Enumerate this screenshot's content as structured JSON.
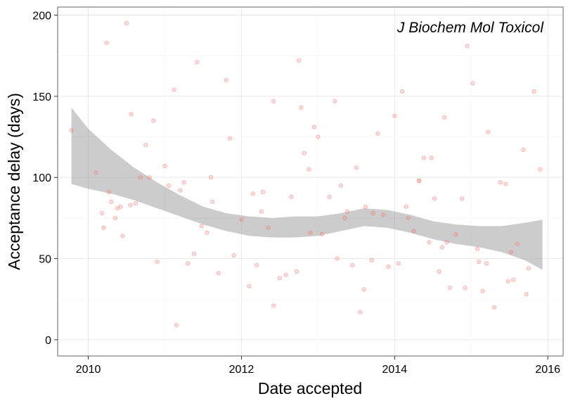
{
  "chart_data": {
    "type": "scatter",
    "title": "",
    "annotation": "J Biochem Mol Toxicol",
    "xlabel": "Date accepted",
    "ylabel": "Acceptance delay (days)",
    "xlim": [
      2009.6,
      2016.2
    ],
    "ylim": [
      -10,
      205
    ],
    "x_ticks": [
      2010,
      2012,
      2014,
      2016
    ],
    "y_ticks": [
      0,
      50,
      100,
      150,
      200
    ],
    "grid": true,
    "point_color": "#f8766d",
    "point_alpha": 0.35,
    "smooth": {
      "method": "loess",
      "fill_color": "#999999",
      "x": [
        2009.78,
        2010.0,
        2010.3,
        2010.6,
        2010.9,
        2011.2,
        2011.5,
        2011.8,
        2012.1,
        2012.4,
        2012.7,
        2013.0,
        2013.3,
        2013.6,
        2013.9,
        2014.2,
        2014.5,
        2014.8,
        2015.1,
        2015.4,
        2015.7,
        2015.93
      ],
      "upper": [
        143,
        130,
        117,
        106,
        97,
        89,
        82,
        78,
        76,
        75,
        76,
        76,
        78,
        81,
        80,
        77,
        73,
        71,
        70,
        70,
        72,
        74
      ],
      "lower": [
        96,
        93,
        90,
        86,
        81,
        76,
        71,
        67,
        64,
        63,
        63,
        64,
        67,
        70,
        69,
        66,
        62,
        59,
        57,
        54,
        49,
        43
      ]
    },
    "x": [
      2009.78,
      2010.1,
      2010.18,
      2010.24,
      2010.3,
      2010.35,
      2010.38,
      2010.42,
      2010.45,
      2010.5,
      2010.56,
      2010.62,
      2010.68,
      2010.75,
      2010.8,
      2010.85,
      2010.9,
      2011.0,
      2011.05,
      2011.12,
      2011.15,
      2011.2,
      2011.3,
      2011.38,
      2011.42,
      2011.48,
      2011.55,
      2011.6,
      2011.7,
      2011.8,
      2011.9,
      2012.0,
      2012.1,
      2012.2,
      2012.28,
      2012.35,
      2012.42,
      2012.5,
      2012.58,
      2012.65,
      2012.72,
      2012.78,
      2012.82,
      2012.88,
      2012.95,
      2013.05,
      2013.15,
      2013.22,
      2013.3,
      2013.38,
      2013.45,
      2013.5,
      2013.55,
      2013.62,
      2013.7,
      2013.78,
      2013.85,
      2013.92,
      2014.0,
      2014.05,
      2014.1,
      2014.18,
      2014.25,
      2014.32,
      2014.38,
      2014.45,
      2014.52,
      2014.58,
      2014.65,
      2014.72,
      2014.8,
      2014.88,
      2014.95,
      2015.02,
      2015.1,
      2015.15,
      2015.22,
      2015.3,
      2015.38,
      2015.45,
      2015.52,
      2015.6,
      2015.68,
      2015.75,
      2015.82,
      2015.9,
      2010.2,
      2010.27,
      2010.55,
      2011.25,
      2011.62,
      2012.75,
      2013.0,
      2013.6,
      2014.32,
      2014.92,
      2015.08,
      2015.72,
      2012.26,
      2012.42,
      2013.35,
      2014.48,
      2014.68,
      2015.2,
      2015.48,
      2011.85,
      2012.15,
      2012.9,
      2013.25,
      2014.15,
      2014.62,
      2015.55,
      2013.72
    ],
    "y": [
      129,
      103,
      78,
      183,
      85,
      75,
      81,
      82,
      64,
      195,
      139,
      84,
      100,
      120,
      100,
      135,
      48,
      107,
      95,
      154,
      9,
      92,
      47,
      53,
      171,
      70,
      66,
      100,
      41,
      160,
      52,
      74,
      33,
      46,
      91,
      69,
      147,
      38,
      40,
      88,
      42,
      143,
      115,
      105,
      131,
      65,
      88,
      147,
      95,
      79,
      46,
      106,
      17,
      82,
      49,
      127,
      77,
      45,
      138,
      47,
      153,
      75,
      67,
      98,
      112,
      60,
      87,
      42,
      137,
      32,
      65,
      87,
      181,
      158,
      48,
      30,
      128,
      20,
      97,
      96,
      54,
      59,
      117,
      44,
      153,
      105,
      69,
      91,
      83,
      97,
      85,
      172,
      125,
      31,
      98,
      32,
      56,
      28,
      79,
      21,
      75,
      112,
      60,
      47,
      36,
      124,
      90,
      66,
      50,
      82,
      57,
      37,
      78
    ]
  }
}
